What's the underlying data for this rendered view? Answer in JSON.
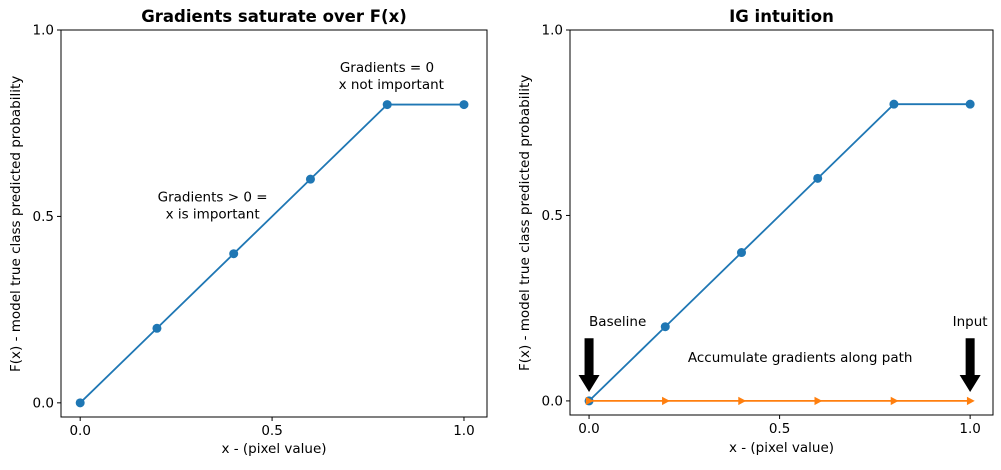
{
  "colors": {
    "curve_blue": "#1f77b4",
    "path_orange": "#ff7f0e",
    "text": "#000000",
    "background": "#ffffff"
  },
  "chart_data": [
    {
      "type": "line",
      "title": "Gradients saturate over F(x)",
      "xlabel": "x - (pixel value)",
      "ylabel": "F(x) - model true class predicted probability",
      "xlim": [
        -0.05,
        1.06
      ],
      "ylim": [
        -0.038,
        1.0
      ],
      "grid": false,
      "legend": null,
      "xticks": [
        {
          "value": 0.0,
          "label": "0.0"
        },
        {
          "value": 0.5,
          "label": "0.5"
        },
        {
          "value": 1.0,
          "label": "1.0"
        }
      ],
      "yticks": [
        {
          "value": 0.0,
          "label": "0.0"
        },
        {
          "value": 0.5,
          "label": "0.5"
        },
        {
          "value": 1.0,
          "label": "1.0"
        }
      ],
      "series": [
        {
          "name": "F(x)",
          "color": "#1f77b4",
          "marker": "circle",
          "x": [
            0.0,
            0.2,
            0.4,
            0.6,
            0.8,
            1.0
          ],
          "y": [
            0.0,
            0.2,
            0.4,
            0.6,
            0.8,
            0.8
          ]
        }
      ],
      "annotations": [
        {
          "text": "Gradients = 0 \n x not important",
          "x": 0.805,
          "y": 0.878,
          "align": "center"
        },
        {
          "text": "Gradients > 0 =\nx is important",
          "x": 0.345,
          "y": 0.53,
          "align": "center"
        }
      ],
      "arrows": []
    },
    {
      "type": "line",
      "title": "IG intuition",
      "xlabel": "x - (pixel value)",
      "ylabel": "F(x) - model true class predicted probability",
      "xlim": [
        -0.05,
        1.06
      ],
      "ylim": [
        -0.038,
        1.0
      ],
      "grid": false,
      "legend": null,
      "xticks": [
        {
          "value": 0.0,
          "label": "0.0"
        },
        {
          "value": 0.5,
          "label": "0.5"
        },
        {
          "value": 1.0,
          "label": "1.0"
        }
      ],
      "yticks": [
        {
          "value": 0.0,
          "label": "0.0"
        },
        {
          "value": 0.5,
          "label": "0.5"
        },
        {
          "value": 1.0,
          "label": "1.0"
        }
      ],
      "series": [
        {
          "name": "F(x)",
          "color": "#1f77b4",
          "marker": "circle",
          "x": [
            0.0,
            0.2,
            0.4,
            0.6,
            0.8,
            1.0
          ],
          "y": [
            0.0,
            0.2,
            0.4,
            0.6,
            0.8,
            0.8
          ]
        },
        {
          "name": "integration path",
          "color": "#ff7f0e",
          "marker": "triangle-right",
          "x": [
            0.0,
            0.2,
            0.4,
            0.6,
            0.8,
            1.0
          ],
          "y": [
            0.0,
            0.0,
            0.0,
            0.0,
            0.0,
            0.0
          ]
        }
      ],
      "annotations": [
        {
          "text": "Baseline",
          "x": 0.0,
          "y": 0.215,
          "align": "left"
        },
        {
          "text": "Input",
          "x": 1.0,
          "y": 0.215,
          "align": "center"
        },
        {
          "text": "Accumulate gradients along path",
          "x": 0.554,
          "y": 0.118,
          "align": "center"
        }
      ],
      "arrows": [
        {
          "x": 0.0,
          "y_start": 0.169,
          "y_end": 0.024,
          "color": "#000000"
        },
        {
          "x": 1.0,
          "y_start": 0.169,
          "y_end": 0.024,
          "color": "#000000"
        }
      ]
    }
  ]
}
